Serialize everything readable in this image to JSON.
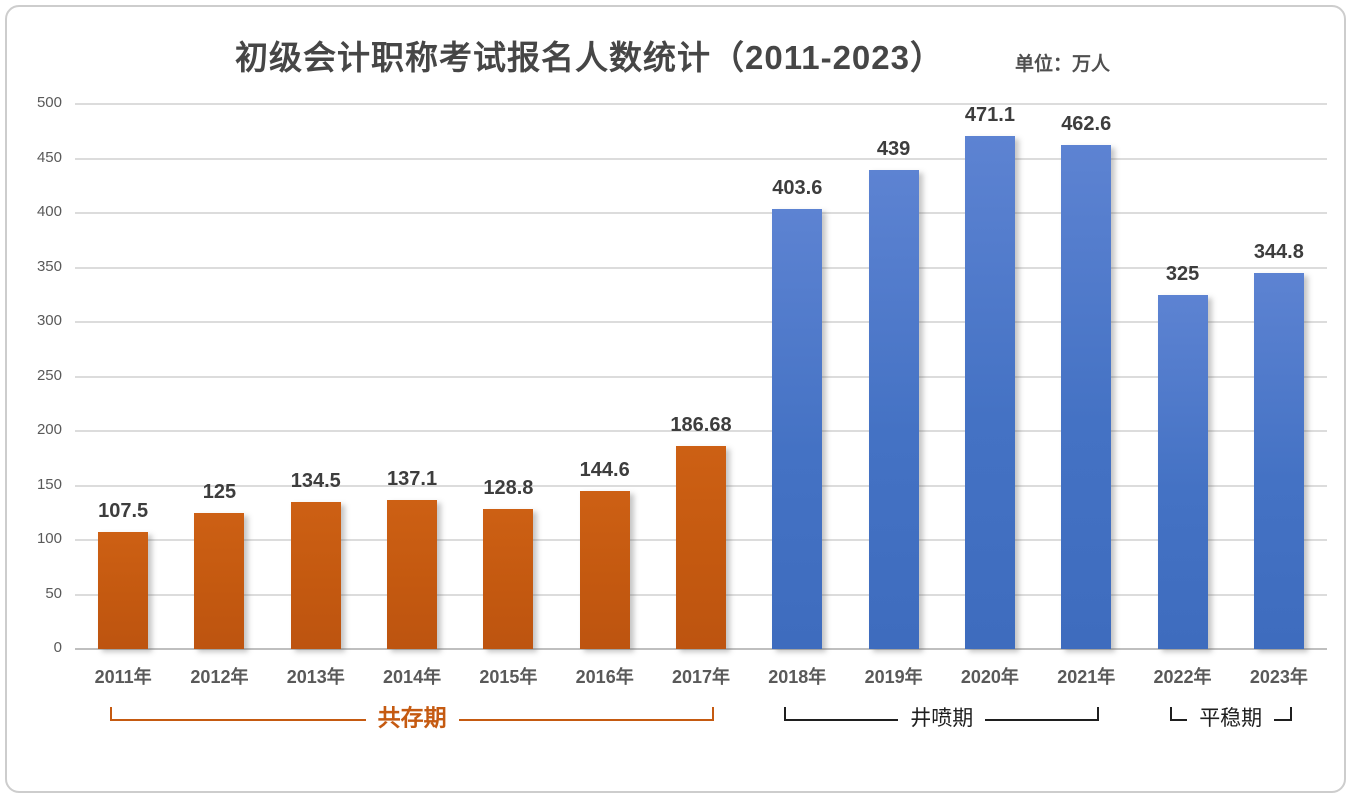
{
  "header": {
    "title": "初级会计职称考试报名人数统计（2011-2023）",
    "unit_label": "单位：万人"
  },
  "chart_data": {
    "type": "bar",
    "title": "初级会计职称考试报名人数统计（2011-2023）",
    "unit": "万人",
    "categories": [
      "2011年",
      "2012年",
      "2013年",
      "2014年",
      "2015年",
      "2016年",
      "2017年",
      "2018年",
      "2019年",
      "2020年",
      "2021年",
      "2022年",
      "2023年"
    ],
    "values": [
      107.5,
      125,
      134.5,
      137.1,
      128.8,
      144.6,
      186.68,
      403.6,
      439,
      471.1,
      462.6,
      325,
      344.8
    ],
    "bar_colors": [
      "orange",
      "orange",
      "orange",
      "orange",
      "orange",
      "orange",
      "orange",
      "blue",
      "blue",
      "blue",
      "blue",
      "blue",
      "blue"
    ],
    "series_colors": {
      "orange": "#C55A11",
      "blue": "#4472C4"
    },
    "ylim": [
      0,
      500
    ],
    "ytick_interval": 50,
    "yticks": [
      0,
      50,
      100,
      150,
      200,
      250,
      300,
      350,
      400,
      450,
      500
    ],
    "grid": true,
    "legend_position": "none",
    "data_labels": true,
    "phases": [
      {
        "label": "共存期",
        "start_index": 0,
        "end_index": 6,
        "color": "#C55A11",
        "style": "accent"
      },
      {
        "label": "井喷期",
        "start_index": 7,
        "end_index": 10,
        "color": "#1f1f1f",
        "style": "plain"
      },
      {
        "label": "平稳期",
        "start_index": 11,
        "end_index": 12,
        "color": "#1f1f1f",
        "style": "plain"
      }
    ]
  }
}
